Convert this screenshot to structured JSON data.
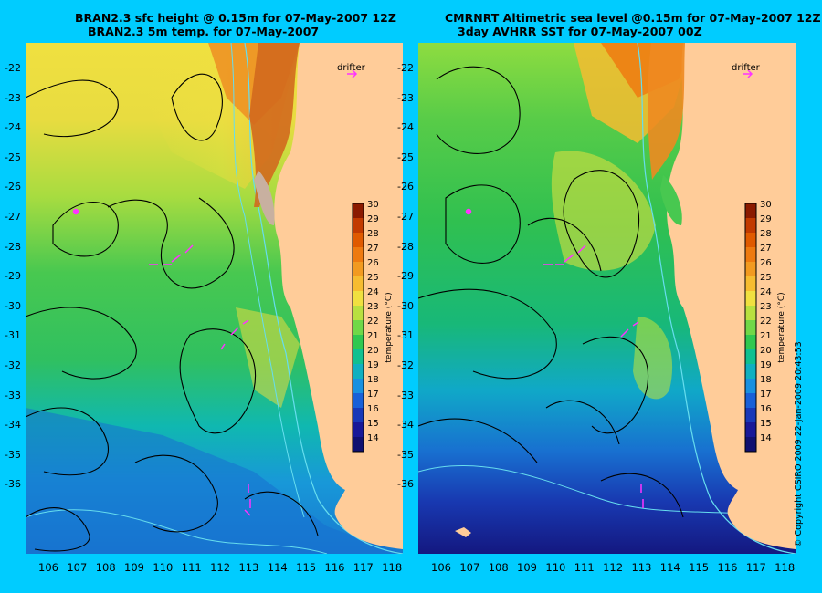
{
  "titles": {
    "left_line1": "BRAN2.3 sfc height @ 0.15m for 07-May-2007 12Z",
    "left_line2": "BRAN2.3 5m temp. for 07-May-2007",
    "right_line1": "CMRNRT Altimetric sea level  @0.15m  for 07-May-2007 12Z",
    "right_line2": "3day AVHRR SST for 07-May-2007 00Z"
  },
  "axes": {
    "longitudes": [
      "106",
      "107",
      "108",
      "109",
      "110",
      "111",
      "112",
      "113",
      "114",
      "115",
      "116",
      "117",
      "118"
    ],
    "latitudes": [
      "-22",
      "-23",
      "-24",
      "-25",
      "-26",
      "-27",
      "-28",
      "-29",
      "-30",
      "-31",
      "-32",
      "-33",
      "-34",
      "-35",
      "-36"
    ]
  },
  "colorbar": {
    "label": "temperature (°C)",
    "ticks": [
      "30",
      "29",
      "28",
      "27",
      "26",
      "25",
      "24",
      "23",
      "22",
      "21",
      "20",
      "19",
      "18",
      "17",
      "16",
      "15",
      "14"
    ],
    "colors": [
      "#8b1a00",
      "#c23a00",
      "#e05a00",
      "#ee7a10",
      "#f29a20",
      "#f6bc30",
      "#f0e040",
      "#b8e040",
      "#70d848",
      "#30c850",
      "#10c090",
      "#10b0c0",
      "#1890e0",
      "#1860d8",
      "#1838b8",
      "#181898",
      "#101070"
    ]
  },
  "legend": {
    "drifter": "drifter"
  },
  "copyright": "© Copyright CSIRO 2009   22-Jan-2009 20:43:53",
  "colors": {
    "background": "#00ccff",
    "land": "#ffcc99",
    "drifter": "#ff33ff"
  }
}
